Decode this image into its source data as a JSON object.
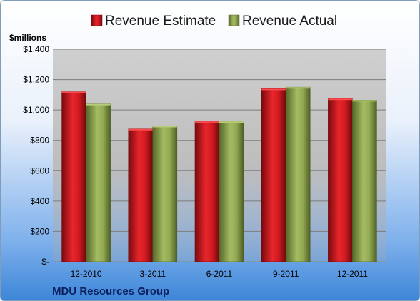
{
  "colors": {
    "estimate": "#c8141c",
    "actual": "#8aa04a"
  },
  "chart_data": {
    "type": "bar",
    "title": "",
    "unit_label": "$millions",
    "categories": [
      "12-2010",
      "3-2011",
      "6-2011",
      "9-2011",
      "12-2011"
    ],
    "series": [
      {
        "name": "Revenue Estimate",
        "values": [
          1120,
          875,
          925,
          1140,
          1075
        ]
      },
      {
        "name": "Revenue Actual",
        "values": [
          1040,
          895,
          925,
          1150,
          1065
        ]
      }
    ],
    "ylim": [
      0,
      1400
    ],
    "yticks": [
      0,
      200,
      400,
      600,
      800,
      1000,
      1200,
      1400
    ],
    "ytick_labels": [
      "$-",
      "$200",
      "$400",
      "$600",
      "$800",
      "$1,000",
      "$1,200",
      "$1,400"
    ],
    "grid": true,
    "legend_position": "top"
  },
  "footer": {
    "company": "MDU Resources Group"
  }
}
